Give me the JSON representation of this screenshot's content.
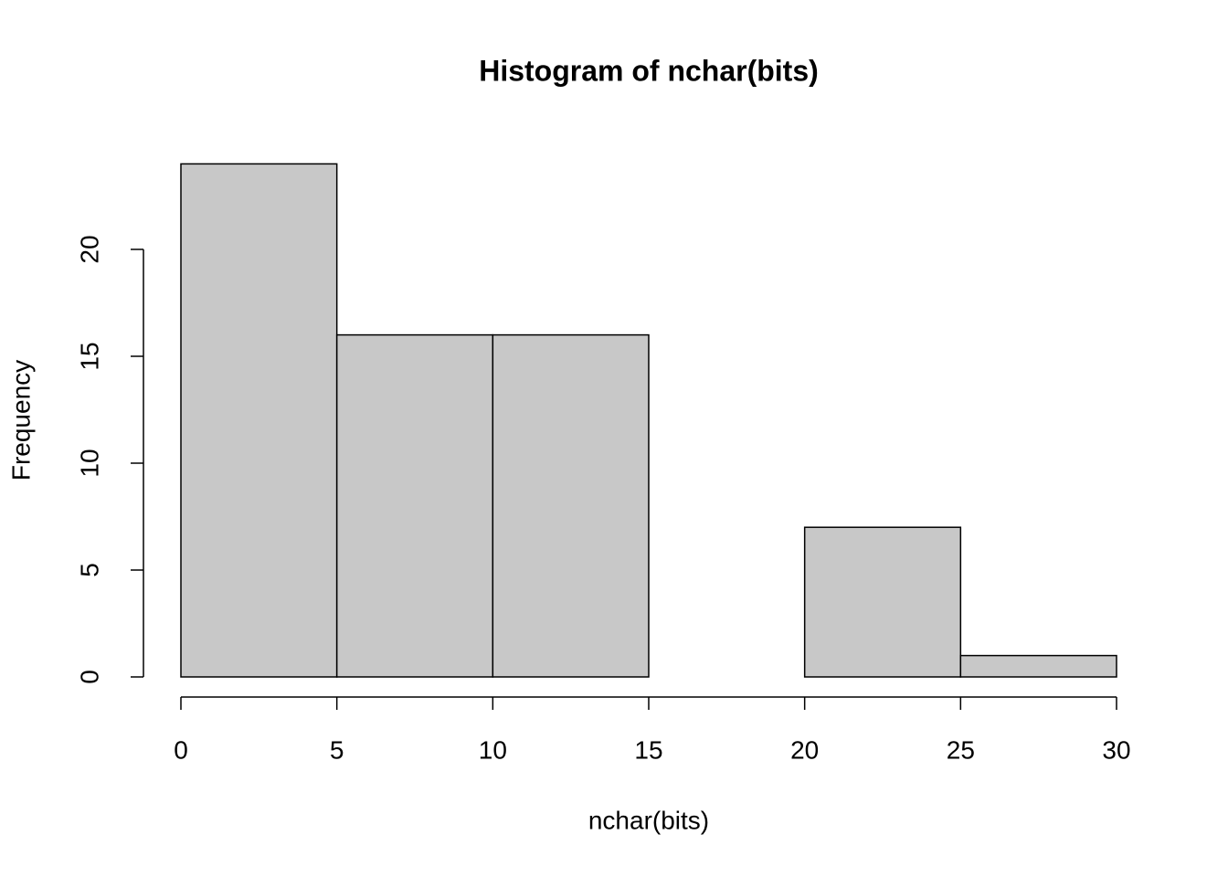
{
  "chart_data": {
    "type": "histogram",
    "title": "Histogram of nchar(bits)",
    "x_label": "nchar(bits)",
    "y_label": "Frequency",
    "bins": [
      0,
      5,
      10,
      15,
      20,
      25,
      30
    ],
    "values": [
      24,
      16,
      16,
      0,
      7,
      1
    ],
    "color": "#c8c8c8",
    "xlim": [
      0,
      30
    ],
    "xticks": [
      0,
      5,
      10,
      15,
      20,
      25,
      30
    ],
    "ylim": [
      0,
      24
    ],
    "yticks": [
      0,
      5,
      10,
      15,
      20
    ]
  }
}
